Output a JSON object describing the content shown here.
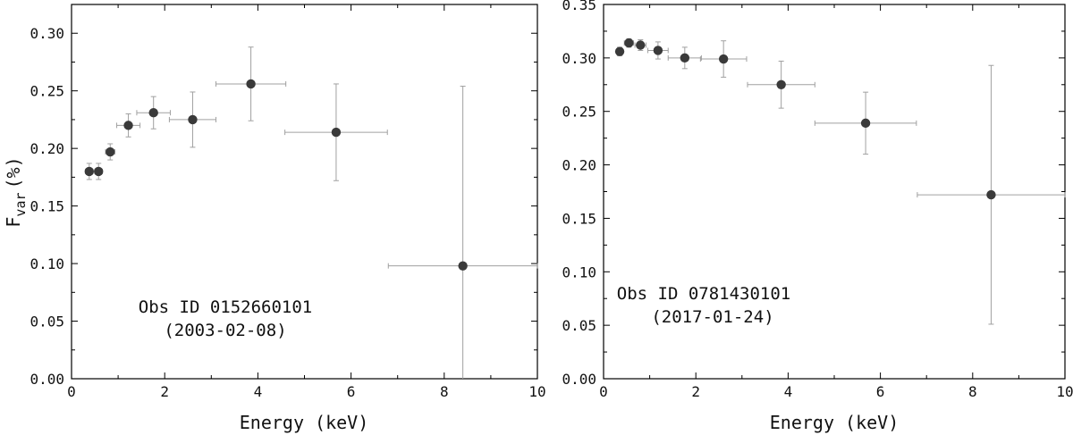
{
  "chart_data": [
    {
      "type": "scatter",
      "xlabel": "Energy (keV)",
      "ylabel": "F",
      "ylabel_sub": "var",
      "ylabel_unit": "(%)",
      "xlim": [
        0,
        10
      ],
      "ylim": [
        0,
        0.325
      ],
      "xticks": [
        0,
        2,
        4,
        6,
        8,
        10
      ],
      "yticks": [
        0.0,
        0.05,
        0.1,
        0.15,
        0.2,
        0.25,
        0.3
      ],
      "ytick_labels": [
        "0.00",
        "0.05",
        "0.10",
        "0.15",
        "0.20",
        "0.25",
        "0.30"
      ],
      "annotation": [
        "Obs ID 0152660101",
        "(2003-02-08)"
      ],
      "marker_color": "#3a3a3a",
      "errorbar_color": "#a0a0a0",
      "points": [
        {
          "x": 0.38,
          "y": 0.18,
          "xerr": [
            0.08,
            0.08
          ],
          "yerr": 0.007
        },
        {
          "x": 0.58,
          "y": 0.18,
          "xerr": [
            0.08,
            0.08
          ],
          "yerr": 0.007
        },
        {
          "x": 0.83,
          "y": 0.197,
          "xerr": [
            0.1,
            0.1
          ],
          "yerr": 0.007
        },
        {
          "x": 1.22,
          "y": 0.22,
          "xerr": [
            0.25,
            0.25
          ],
          "yerr": 0.01
        },
        {
          "x": 1.76,
          "y": 0.231,
          "xerr": [
            0.36,
            0.36
          ],
          "yerr": 0.014
        },
        {
          "x": 2.6,
          "y": 0.225,
          "xerr": [
            0.5,
            0.5
          ],
          "yerr": 0.024
        },
        {
          "x": 3.85,
          "y": 0.256,
          "xerr": [
            0.75,
            0.75
          ],
          "yerr": 0.032
        },
        {
          "x": 5.68,
          "y": 0.214,
          "xerr": [
            1.1,
            1.1
          ],
          "yerr": 0.042
        },
        {
          "x": 8.4,
          "y": 0.098,
          "xerr": [
            1.6,
            1.6
          ],
          "yerr": 0.156
        }
      ]
    },
    {
      "type": "scatter",
      "xlabel": "Energy (keV)",
      "xlim": [
        0,
        10
      ],
      "ylim": [
        0,
        0.35
      ],
      "xticks": [
        0,
        2,
        4,
        6,
        8,
        10
      ],
      "yticks": [
        0.0,
        0.05,
        0.1,
        0.15,
        0.2,
        0.25,
        0.3,
        0.35
      ],
      "ytick_labels": [
        "0.00",
        "0.05",
        "0.10",
        "0.15",
        "0.20",
        "0.25",
        "0.30",
        "0.35"
      ],
      "annotation": [
        "Obs ID 0781430101",
        "(2017-01-24)"
      ],
      "marker_color": "#3a3a3a",
      "errorbar_color": "#a0a0a0",
      "points": [
        {
          "x": 0.35,
          "y": 0.306,
          "xerr": [
            0.05,
            0.05
          ],
          "yerr": 0.004
        },
        {
          "x": 0.55,
          "y": 0.314,
          "xerr": [
            0.1,
            0.1
          ],
          "yerr": 0.004
        },
        {
          "x": 0.8,
          "y": 0.312,
          "xerr": [
            0.12,
            0.12
          ],
          "yerr": 0.005
        },
        {
          "x": 1.18,
          "y": 0.307,
          "xerr": [
            0.22,
            0.22
          ],
          "yerr": 0.008
        },
        {
          "x": 1.76,
          "y": 0.3,
          "xerr": [
            0.36,
            0.36
          ],
          "yerr": 0.01
        },
        {
          "x": 2.6,
          "y": 0.299,
          "xerr": [
            0.5,
            0.5
          ],
          "yerr": 0.017
        },
        {
          "x": 3.85,
          "y": 0.275,
          "xerr": [
            0.73,
            0.73
          ],
          "yerr": 0.022
        },
        {
          "x": 5.68,
          "y": 0.239,
          "xerr": [
            1.1,
            1.1
          ],
          "yerr": 0.029
        },
        {
          "x": 8.4,
          "y": 0.172,
          "xerr": [
            1.6,
            1.6
          ],
          "yerr": 0.121
        }
      ]
    }
  ]
}
